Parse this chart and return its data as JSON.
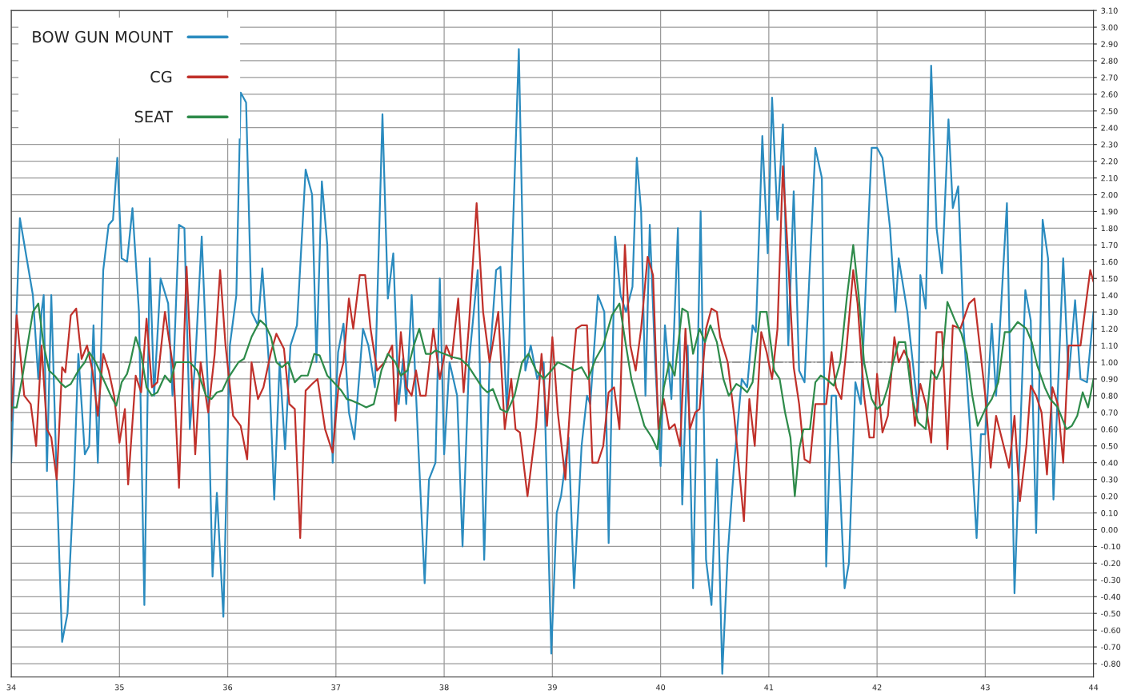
{
  "chart_data": {
    "type": "line",
    "xlim": [
      34,
      44
    ],
    "ylim": [
      -0.88,
      3.1
    ],
    "xticks": [
      34,
      35,
      36,
      37,
      38,
      39,
      40,
      41,
      42,
      43,
      44
    ],
    "yticks": [
      {
        "value": 3.1,
        "label": "3.10"
      },
      {
        "value": 3.0,
        "label": "3.00"
      },
      {
        "value": 2.9,
        "label": "2.90"
      },
      {
        "value": 2.8,
        "label": "2.80"
      },
      {
        "value": 2.7,
        "label": "2.70"
      },
      {
        "value": 2.6,
        "label": "2.60"
      },
      {
        "value": 2.5,
        "label": "2.50"
      },
      {
        "value": 2.4,
        "label": "2.40"
      },
      {
        "value": 2.3,
        "label": "2.30"
      },
      {
        "value": 2.2,
        "label": "2.20"
      },
      {
        "value": 2.1,
        "label": "2.10"
      },
      {
        "value": 2.0,
        "label": "2.00"
      },
      {
        "value": 1.9,
        "label": "1.90"
      },
      {
        "value": 1.8,
        "label": "1.80"
      },
      {
        "value": 1.7,
        "label": "1.70"
      },
      {
        "value": 1.6,
        "label": "1.60"
      },
      {
        "value": 1.5,
        "label": "1.50"
      },
      {
        "value": 1.4,
        "label": "1.40"
      },
      {
        "value": 1.3,
        "label": "1.30"
      },
      {
        "value": 1.2,
        "label": "1.20"
      },
      {
        "value": 1.1,
        "label": "1.10"
      },
      {
        "value": 1.0,
        "label": "1.00"
      },
      {
        "value": 0.9,
        "label": "0.90"
      },
      {
        "value": 0.8,
        "label": "0.80"
      },
      {
        "value": 0.7,
        "label": "0.70"
      },
      {
        "value": 0.6,
        "label": "0.60"
      },
      {
        "value": 0.5,
        "label": "0.50"
      },
      {
        "value": 0.4,
        "label": "0.40"
      },
      {
        "value": 0.3,
        "label": "0.30"
      },
      {
        "value": 0.2,
        "label": "0.20"
      },
      {
        "value": 0.1,
        "label": "0.10"
      },
      {
        "value": 0.0,
        "label": "0.00"
      },
      {
        "value": -0.1,
        "label": "-0.10"
      },
      {
        "value": -0.2,
        "label": "-0.20"
      },
      {
        "value": -0.3,
        "label": "-0.30"
      },
      {
        "value": -0.4,
        "label": "-0.40"
      },
      {
        "value": -0.5,
        "label": "-0.50"
      },
      {
        "value": -0.6,
        "label": "-0.60"
      },
      {
        "value": -0.7,
        "label": "-0.70"
      },
      {
        "value": -0.8,
        "label": "-0.80"
      }
    ],
    "grid": true,
    "legend": "top left",
    "marker": "none",
    "line_style": "solid",
    "ref_lines": [
      {
        "axis": "y",
        "value": 1.0,
        "label": null,
        "color": "#8a8a8a",
        "line_style": "dashdot"
      }
    ],
    "series": [
      {
        "name": "BOW GUN MOUNT",
        "color": "#2a8bbf",
        "x": [
          34.0,
          34.08,
          34.2,
          34.25,
          34.28,
          34.3,
          34.33,
          34.37,
          34.42,
          34.47,
          34.52,
          34.58,
          34.62,
          34.68,
          34.72,
          34.76,
          34.8,
          34.85,
          34.9,
          34.94,
          34.98,
          35.02,
          35.07,
          35.12,
          35.18,
          35.23,
          35.28,
          35.32,
          35.38,
          35.45,
          35.49,
          35.55,
          35.6,
          35.65,
          35.7,
          35.76,
          35.82,
          35.86,
          35.9,
          35.96,
          36.02,
          36.08,
          36.12,
          36.17,
          36.22,
          36.28,
          36.32,
          36.38,
          36.43,
          36.48,
          36.53,
          36.58,
          36.64,
          36.72,
          36.78,
          36.82,
          36.87,
          36.92,
          36.97,
          37.02,
          37.07,
          37.12,
          37.17,
          37.25,
          37.3,
          37.36,
          37.43,
          37.48,
          37.53,
          37.58,
          37.62,
          37.65,
          37.7,
          37.76,
          37.82,
          37.86,
          37.92,
          37.96,
          38.0,
          38.05,
          38.12,
          38.17,
          38.23,
          38.31,
          38.37,
          38.42,
          38.48,
          38.52,
          38.58,
          38.69,
          38.75,
          38.8,
          38.86,
          38.92,
          38.99,
          39.04,
          39.08,
          39.15,
          39.2,
          39.27,
          39.32,
          39.35,
          39.42,
          39.48,
          39.52,
          39.58,
          39.63,
          39.68,
          39.74,
          39.78,
          39.82,
          39.86,
          39.9,
          39.95,
          40.0,
          40.04,
          40.1,
          40.16,
          40.2,
          40.25,
          40.3,
          40.37,
          40.42,
          40.47,
          40.52,
          40.57,
          40.62,
          40.68,
          40.75,
          40.8,
          40.85,
          40.88,
          40.94,
          40.99,
          41.03,
          41.08,
          41.13,
          41.18,
          41.23,
          41.28,
          41.33,
          41.43,
          41.49,
          41.53,
          41.58,
          41.62,
          41.7,
          41.74,
          41.8,
          41.85,
          41.95,
          42.0,
          42.05,
          42.12,
          42.17,
          42.2,
          42.28,
          42.38,
          42.4,
          42.45,
          42.5,
          42.55,
          42.6,
          42.66,
          42.7,
          42.75,
          42.8,
          42.88,
          42.92,
          42.96,
          43.0,
          43.06,
          43.1,
          43.2,
          43.27,
          43.37,
          43.42,
          43.47,
          43.53,
          43.58,
          43.63,
          43.72,
          43.77,
          43.83,
          43.88,
          43.94,
          44.0
        ],
        "values": [
          0.4,
          1.86,
          1.4,
          0.9,
          1.3,
          1.4,
          0.35,
          1.4,
          0.3,
          -0.67,
          -0.5,
          0.3,
          1.05,
          0.45,
          0.5,
          1.22,
          0.4,
          1.55,
          1.82,
          1.85,
          2.22,
          1.62,
          1.6,
          1.92,
          1.3,
          -0.45,
          1.62,
          0.8,
          1.5,
          1.35,
          0.8,
          1.82,
          1.8,
          0.6,
          1.0,
          1.75,
          0.8,
          -0.28,
          0.22,
          -0.52,
          1.1,
          1.4,
          2.61,
          2.55,
          1.3,
          1.22,
          1.56,
          1.0,
          0.18,
          1.0,
          0.48,
          1.1,
          1.22,
          2.15,
          2.0,
          1.0,
          2.08,
          1.7,
          0.4,
          1.06,
          1.23,
          0.7,
          0.54,
          1.2,
          1.1,
          0.85,
          2.48,
          1.38,
          1.65,
          0.75,
          1.02,
          0.75,
          1.4,
          0.52,
          -0.32,
          0.3,
          0.4,
          1.5,
          0.45,
          1.0,
          0.8,
          -0.1,
          1.0,
          1.55,
          -0.18,
          1.0,
          1.55,
          1.57,
          0.7,
          2.87,
          0.95,
          1.1,
          0.9,
          1.0,
          -0.74,
          0.1,
          0.2,
          0.55,
          -0.35,
          0.5,
          0.8,
          0.75,
          1.4,
          1.3,
          -0.08,
          1.75,
          1.4,
          1.3,
          1.45,
          2.22,
          1.9,
          0.8,
          1.82,
          1.0,
          0.38,
          1.22,
          0.78,
          1.8,
          0.15,
          1.1,
          -0.35,
          1.9,
          -0.18,
          -0.45,
          0.42,
          -0.86,
          -0.15,
          0.4,
          0.9,
          0.85,
          1.22,
          1.18,
          2.35,
          1.65,
          2.58,
          1.85,
          2.42,
          1.1,
          2.02,
          0.95,
          0.88,
          2.28,
          2.1,
          -0.22,
          0.8,
          0.8,
          -0.35,
          -0.2,
          0.88,
          0.75,
          2.28,
          2.28,
          2.22,
          1.8,
          1.3,
          1.62,
          1.3,
          0.7,
          1.52,
          1.32,
          2.77,
          1.8,
          1.53,
          2.45,
          1.92,
          2.05,
          1.2,
          0.4,
          -0.05,
          0.57,
          0.57,
          1.23,
          0.8,
          1.95,
          -0.38,
          1.43,
          1.25,
          -0.02,
          1.85,
          1.62,
          0.18,
          1.62,
          0.9,
          1.37,
          0.9,
          0.88,
          1.3
        ]
      },
      {
        "name": "CG",
        "color": "#c0302a",
        "x": [
          34.0,
          34.05,
          34.12,
          34.18,
          34.23,
          34.28,
          34.33,
          34.37,
          34.42,
          34.47,
          34.5,
          34.55,
          34.6,
          34.65,
          34.7,
          34.75,
          34.8,
          34.85,
          34.9,
          34.95,
          35.0,
          35.05,
          35.08,
          35.15,
          35.2,
          35.25,
          35.3,
          35.35,
          35.42,
          35.5,
          35.55,
          35.62,
          35.7,
          35.75,
          35.82,
          35.88,
          35.93,
          35.98,
          36.05,
          36.12,
          36.18,
          36.22,
          36.28,
          36.33,
          36.4,
          36.45,
          36.52,
          36.57,
          36.62,
          36.67,
          36.72,
          36.78,
          36.83,
          36.9,
          36.97,
          37.03,
          37.07,
          37.12,
          37.16,
          37.22,
          37.27,
          37.32,
          37.38,
          37.45,
          37.52,
          37.55,
          37.6,
          37.65,
          37.7,
          37.74,
          37.78,
          37.83,
          37.9,
          37.96,
          38.02,
          38.07,
          38.13,
          38.18,
          38.23,
          38.3,
          38.36,
          38.42,
          38.5,
          38.56,
          38.62,
          38.66,
          38.7,
          38.77,
          38.85,
          38.9,
          38.95,
          39.0,
          39.05,
          39.12,
          39.18,
          39.22,
          39.27,
          39.32,
          39.37,
          39.42,
          39.47,
          39.52,
          39.57,
          39.62,
          39.67,
          39.72,
          39.77,
          39.82,
          39.88,
          39.93,
          39.98,
          40.03,
          40.08,
          40.13,
          40.18,
          40.23,
          40.27,
          40.32,
          40.36,
          40.42,
          40.47,
          40.52,
          40.55,
          40.62,
          40.68,
          40.72,
          40.77,
          40.82,
          40.87,
          40.93,
          40.98,
          41.03,
          41.08,
          41.13,
          41.18,
          41.23,
          41.28,
          41.33,
          41.38,
          41.43,
          41.48,
          41.53,
          41.58,
          41.62,
          41.67,
          41.72,
          41.78,
          41.82,
          41.88,
          41.93,
          41.97,
          42.0,
          42.05,
          42.1,
          42.16,
          42.2,
          42.25,
          42.3,
          42.35,
          42.4,
          42.45,
          42.5,
          42.55,
          42.6,
          42.65,
          42.7,
          42.77,
          42.85,
          42.9,
          43.0,
          43.05,
          43.1,
          43.17,
          43.22,
          43.27,
          43.32,
          43.38,
          43.42,
          43.47,
          43.52,
          43.57,
          43.62,
          43.67,
          43.72,
          43.77,
          43.82,
          43.88,
          43.94,
          43.97,
          44.0
        ],
        "values": [
          0.65,
          1.28,
          0.8,
          0.75,
          0.5,
          1.1,
          0.6,
          0.55,
          0.3,
          0.97,
          0.94,
          1.28,
          1.32,
          1.02,
          1.1,
          0.95,
          0.68,
          1.05,
          0.95,
          0.8,
          0.52,
          0.72,
          0.27,
          0.92,
          0.82,
          1.26,
          0.85,
          0.88,
          1.3,
          0.95,
          0.25,
          1.57,
          0.45,
          1.0,
          0.7,
          1.05,
          1.55,
          1.1,
          0.68,
          0.62,
          0.42,
          1.0,
          0.78,
          0.85,
          1.06,
          1.17,
          1.08,
          0.75,
          0.72,
          -0.05,
          0.83,
          0.87,
          0.9,
          0.6,
          0.46,
          0.9,
          1.0,
          1.38,
          1.2,
          1.52,
          1.52,
          1.2,
          0.95,
          1.0,
          1.1,
          0.65,
          1.18,
          0.85,
          0.8,
          0.95,
          0.8,
          0.8,
          1.2,
          0.9,
          1.1,
          1.02,
          1.38,
          0.82,
          1.23,
          1.95,
          1.3,
          1.0,
          1.3,
          0.6,
          0.9,
          0.6,
          0.58,
          0.2,
          0.62,
          1.05,
          0.62,
          1.15,
          0.7,
          0.3,
          0.9,
          1.2,
          1.22,
          1.22,
          0.4,
          0.4,
          0.5,
          0.82,
          0.85,
          0.6,
          1.7,
          1.1,
          0.95,
          1.2,
          1.63,
          1.52,
          0.6,
          0.78,
          0.6,
          0.63,
          0.5,
          1.2,
          0.6,
          0.7,
          0.72,
          1.2,
          1.32,
          1.3,
          1.15,
          1.0,
          0.68,
          0.4,
          0.05,
          0.78,
          0.5,
          1.18,
          1.06,
          0.9,
          1.2,
          2.17,
          1.6,
          0.97,
          0.75,
          0.42,
          0.4,
          0.75,
          0.75,
          0.75,
          1.06,
          0.85,
          0.78,
          1.1,
          1.55,
          1.35,
          0.8,
          0.55,
          0.55,
          0.93,
          0.58,
          0.68,
          1.15,
          1.0,
          1.07,
          1.0,
          0.62,
          0.87,
          0.75,
          0.52,
          1.18,
          1.18,
          0.48,
          1.22,
          1.2,
          1.35,
          1.38,
          0.8,
          0.37,
          0.68,
          0.5,
          0.37,
          0.68,
          0.17,
          0.5,
          0.86,
          0.8,
          0.7,
          0.33,
          0.85,
          0.75,
          0.4,
          1.1,
          1.1,
          1.1,
          1.4,
          1.55,
          1.48
        ]
      },
      {
        "name": "SEAT",
        "color": "#2e8b4a",
        "x": [
          34.0,
          34.05,
          34.1,
          34.15,
          34.2,
          34.25,
          34.3,
          34.35,
          34.4,
          34.45,
          34.5,
          34.55,
          34.62,
          34.68,
          34.72,
          34.78,
          34.85,
          34.92,
          34.97,
          35.02,
          35.07,
          35.1,
          35.15,
          35.2,
          35.25,
          35.3,
          35.35,
          35.42,
          35.47,
          35.52,
          35.6,
          35.65,
          35.72,
          35.8,
          35.85,
          35.9,
          35.95,
          36.0,
          36.05,
          36.1,
          36.15,
          36.22,
          36.3,
          36.35,
          36.4,
          36.45,
          36.5,
          36.56,
          36.62,
          36.68,
          36.74,
          36.8,
          36.85,
          36.92,
          36.98,
          37.05,
          37.1,
          37.15,
          37.22,
          37.28,
          37.35,
          37.42,
          37.48,
          37.55,
          37.6,
          37.66,
          37.72,
          37.77,
          37.83,
          37.88,
          37.92,
          38.0,
          38.08,
          38.15,
          38.22,
          38.3,
          38.35,
          38.4,
          38.45,
          38.52,
          38.58,
          38.65,
          38.72,
          38.78,
          38.85,
          38.92,
          38.99,
          39.05,
          39.12,
          39.2,
          39.27,
          39.33,
          39.4,
          39.47,
          39.55,
          39.62,
          39.68,
          39.73,
          39.78,
          39.85,
          39.92,
          39.97,
          40.03,
          40.08,
          40.13,
          40.2,
          40.25,
          40.3,
          40.36,
          40.41,
          40.46,
          40.52,
          40.58,
          40.63,
          40.7,
          40.75,
          40.8,
          40.85,
          40.92,
          40.98,
          41.05,
          41.1,
          41.15,
          41.2,
          41.24,
          41.28,
          41.32,
          41.38,
          41.43,
          41.48,
          41.53,
          41.6,
          41.66,
          41.72,
          41.78,
          41.83,
          41.88,
          41.95,
          42.0,
          42.05,
          42.1,
          42.15,
          42.2,
          42.26,
          42.32,
          42.38,
          42.45,
          42.5,
          42.55,
          42.6,
          42.65,
          42.72,
          42.78,
          42.83,
          42.88,
          42.93,
          43.0,
          43.06,
          43.12,
          43.18,
          43.23,
          43.3,
          43.38,
          43.43,
          43.48,
          43.55,
          43.6,
          43.67,
          43.75,
          43.8,
          43.85,
          43.9,
          43.95,
          44.0
        ],
        "values": [
          0.73,
          0.73,
          0.9,
          1.1,
          1.3,
          1.35,
          1.1,
          0.95,
          0.92,
          0.88,
          0.85,
          0.87,
          0.95,
          1.0,
          1.06,
          1.0,
          0.9,
          0.8,
          0.74,
          0.88,
          0.93,
          1.0,
          1.15,
          1.05,
          0.85,
          0.8,
          0.82,
          0.92,
          0.88,
          1.0,
          1.0,
          1.0,
          0.95,
          0.8,
          0.78,
          0.82,
          0.83,
          0.9,
          0.95,
          1.0,
          1.02,
          1.15,
          1.25,
          1.22,
          1.15,
          1.0,
          0.97,
          1.0,
          0.88,
          0.92,
          0.92,
          1.05,
          1.04,
          0.92,
          0.88,
          0.83,
          0.78,
          0.77,
          0.75,
          0.73,
          0.75,
          0.95,
          1.05,
          1.0,
          0.92,
          0.95,
          1.1,
          1.2,
          1.05,
          1.05,
          1.07,
          1.05,
          1.03,
          1.02,
          0.98,
          0.9,
          0.85,
          0.82,
          0.84,
          0.72,
          0.7,
          0.8,
          1.0,
          1.05,
          0.95,
          0.9,
          0.95,
          1.0,
          0.98,
          0.95,
          0.97,
          0.9,
          1.02,
          1.1,
          1.28,
          1.35,
          1.1,
          0.9,
          0.78,
          0.62,
          0.55,
          0.48,
          0.85,
          1.0,
          0.92,
          1.32,
          1.3,
          1.05,
          1.2,
          1.12,
          1.22,
          1.12,
          0.9,
          0.8,
          0.87,
          0.85,
          0.82,
          0.88,
          1.3,
          1.3,
          0.95,
          0.9,
          0.7,
          0.55,
          0.2,
          0.48,
          0.6,
          0.6,
          0.88,
          0.92,
          0.9,
          0.86,
          1.0,
          1.38,
          1.7,
          1.4,
          1.0,
          0.78,
          0.72,
          0.75,
          0.85,
          1.0,
          1.12,
          1.12,
          0.8,
          0.64,
          0.6,
          0.95,
          0.9,
          0.98,
          1.36,
          1.25,
          1.17,
          1.05,
          0.8,
          0.62,
          0.72,
          0.78,
          0.88,
          1.18,
          1.18,
          1.24,
          1.2,
          1.12,
          0.98,
          0.85,
          0.78,
          0.73,
          0.6,
          0.62,
          0.68,
          0.82,
          0.73,
          0.9
        ]
      }
    ]
  }
}
